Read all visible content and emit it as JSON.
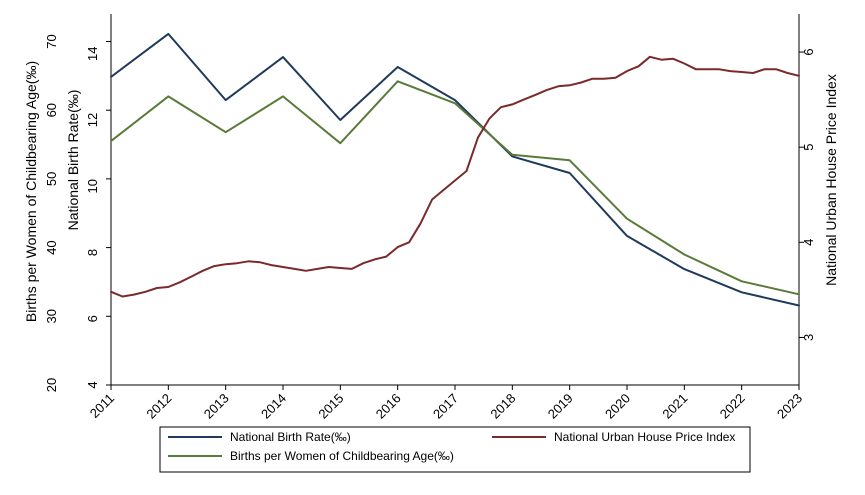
{
  "chart_data": {
    "type": "line",
    "x": [
      2011,
      2012,
      2013,
      2014,
      2015,
      2016,
      2017,
      2018,
      2019,
      2020,
      2021,
      2022,
      2023
    ],
    "xlim": [
      2011,
      2023
    ],
    "axes": {
      "left_outer": {
        "label": "Births per Women of Childbearing Age(‰)",
        "ticks": [
          20,
          30,
          40,
          50,
          60,
          70
        ],
        "range": [
          20,
          74
        ]
      },
      "left_inner": {
        "label": "National Birth Rate(‰)",
        "ticks": [
          4,
          6,
          8,
          10,
          12,
          14
        ],
        "range": [
          4,
          15.2
        ]
      },
      "right": {
        "label": "National Urban House Price Index",
        "ticks": [
          3,
          4,
          5,
          6
        ],
        "range": [
          2.5,
          6.4
        ]
      }
    },
    "series": [
      {
        "name": "National Birth Rate(‰)",
        "axis": "left_inner",
        "color": "#1f3a5a",
        "x": [
          2011,
          2012,
          2013,
          2014,
          2015,
          2016,
          2017,
          2018,
          2019,
          2020,
          2021,
          2022,
          2023
        ],
        "values": [
          13.3,
          14.6,
          12.6,
          13.9,
          12.0,
          13.6,
          12.6,
          10.9,
          10.4,
          8.5,
          7.5,
          6.8,
          6.4
        ]
      },
      {
        "name": "Births per Women of Childbearing Age(‰)",
        "axis": "left_outer",
        "color": "#5a7a3a",
        "x": [
          2011,
          2012,
          2013,
          2014,
          2015,
          2016,
          2017,
          2018,
          2019,
          2020,
          2021,
          2022,
          2023
        ],
        "values": [
          55.5,
          62,
          56.8,
          62,
          55.2,
          64.2,
          61,
          53.5,
          52.7,
          44.2,
          39,
          35.1,
          33.2
        ]
      },
      {
        "name": "National Urban House Price Index",
        "axis": "right",
        "color": "#7a2a2a",
        "x": [
          2011,
          2011.2,
          2011.4,
          2011.6,
          2011.8,
          2012,
          2012.2,
          2012.4,
          2012.6,
          2012.8,
          2013,
          2013.2,
          2013.4,
          2013.6,
          2013.8,
          2014,
          2014.2,
          2014.4,
          2014.6,
          2014.8,
          2015,
          2015.2,
          2015.4,
          2015.6,
          2015.8,
          2016,
          2016.2,
          2016.4,
          2016.6,
          2016.8,
          2017,
          2017.2,
          2017.4,
          2017.6,
          2017.8,
          2018,
          2018.2,
          2018.4,
          2018.6,
          2018.8,
          2019,
          2019.2,
          2019.4,
          2019.6,
          2019.8,
          2020,
          2020.2,
          2020.4,
          2020.6,
          2020.8,
          2021,
          2021.2,
          2021.4,
          2021.6,
          2021.8,
          2022,
          2022.2,
          2022.4,
          2022.6,
          2022.8,
          2023
        ],
        "values": [
          3.48,
          3.43,
          3.45,
          3.48,
          3.52,
          3.53,
          3.58,
          3.64,
          3.7,
          3.75,
          3.77,
          3.78,
          3.8,
          3.79,
          3.76,
          3.74,
          3.72,
          3.7,
          3.72,
          3.74,
          3.73,
          3.72,
          3.78,
          3.82,
          3.85,
          3.95,
          4.0,
          4.2,
          4.45,
          4.55,
          4.65,
          4.75,
          5.1,
          5.3,
          5.42,
          5.45,
          5.5,
          5.55,
          5.6,
          5.64,
          5.65,
          5.68,
          5.72,
          5.72,
          5.73,
          5.8,
          5.85,
          5.95,
          5.92,
          5.93,
          5.88,
          5.82,
          5.82,
          5.82,
          5.8,
          5.79,
          5.78,
          5.82,
          5.82,
          5.78,
          5.75
        ]
      }
    ],
    "legend": {
      "position": "bottom",
      "entries": [
        {
          "label": "National Birth Rate(‰)",
          "color": "#1f3a5a"
        },
        {
          "label": "National Urban House Price Index",
          "color": "#7a2a2a"
        },
        {
          "label": "Births per Women of Childbearing Age(‰)",
          "color": "#5a7a3a"
        }
      ]
    }
  }
}
